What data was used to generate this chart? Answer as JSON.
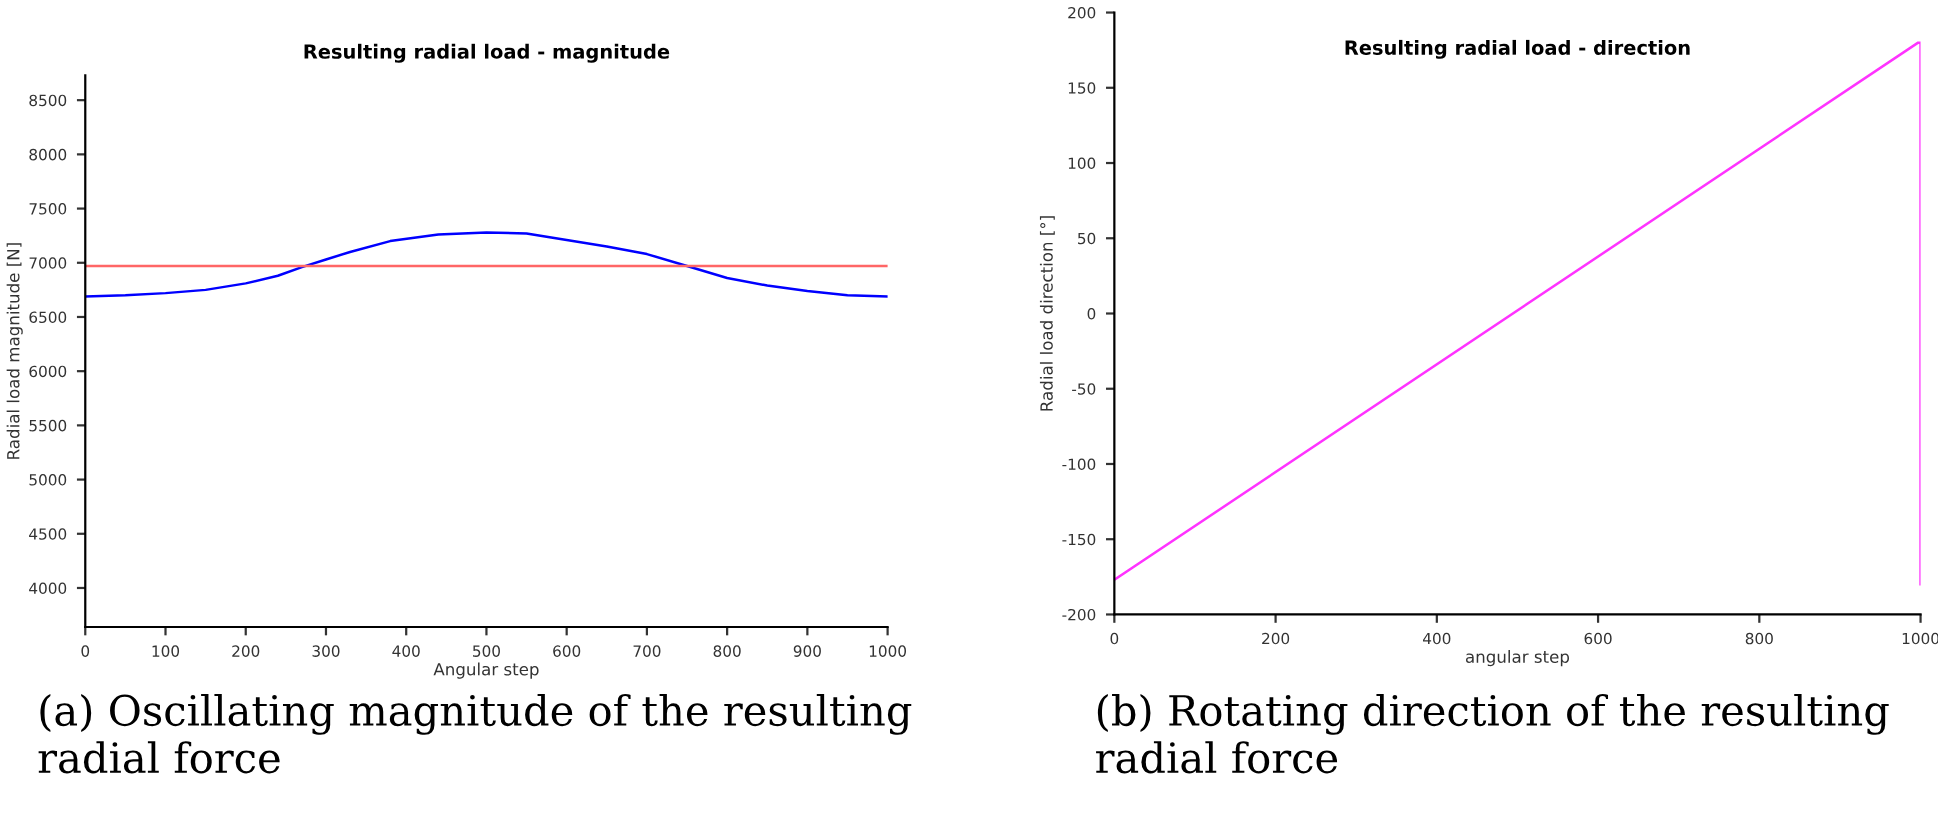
{
  "chart_data": [
    {
      "type": "line",
      "title": "Resulting radial load - magnitude",
      "xlabel": "Angular step",
      "ylabel": "Radial load magnitude [N]",
      "xlim": [
        0,
        1000
      ],
      "xticks": [
        0,
        100,
        200,
        300,
        400,
        500,
        600,
        700,
        800,
        900,
        1000
      ],
      "ylim": [
        3640,
        8730
      ],
      "yticks": [
        4000,
        4500,
        5000,
        5500,
        6000,
        6500,
        7000,
        7500,
        8000,
        8500
      ],
      "grid": false,
      "legend": false,
      "series": [
        {
          "color": "#0000ff",
          "x": [
            0,
            50,
            100,
            150,
            200,
            240,
            270,
            300,
            330,
            380,
            440,
            500,
            550,
            600,
            650,
            700,
            750,
            800,
            850,
            900,
            950,
            1000
          ],
          "values": [
            6690,
            6700,
            6720,
            6750,
            6810,
            6880,
            6960,
            7030,
            7100,
            7200,
            7260,
            7280,
            7270,
            7210,
            7150,
            7080,
            6970,
            6860,
            6790,
            6740,
            6700,
            6690
          ]
        },
        {
          "color": "#ff6666",
          "x": [
            0,
            1000
          ],
          "values": [
            6970,
            6970
          ]
        }
      ],
      "annotations": [
        "(a) Oscillating magnitude of the resulting radial force"
      ]
    },
    {
      "type": "line",
      "title": "Resulting radial load - direction",
      "xlabel": "angular step",
      "ylabel": "Radial load direction [°]",
      "xlim": [
        0,
        1000
      ],
      "xticks": [
        0,
        200,
        400,
        600,
        800,
        1000
      ],
      "ylim": [
        -200,
        200
      ],
      "yticks": [
        -200,
        -150,
        -100,
        -50,
        0,
        50,
        100,
        150,
        200
      ],
      "grid": false,
      "legend": false,
      "series": [
        {
          "color": "#ff33ff",
          "x": [
            0,
            997,
            1000,
            1000
          ],
          "values": [
            -177,
            180,
            180,
            -180
          ]
        }
      ],
      "annotations": [
        "(b) Rotating direction of the resulting radial force"
      ]
    }
  ]
}
